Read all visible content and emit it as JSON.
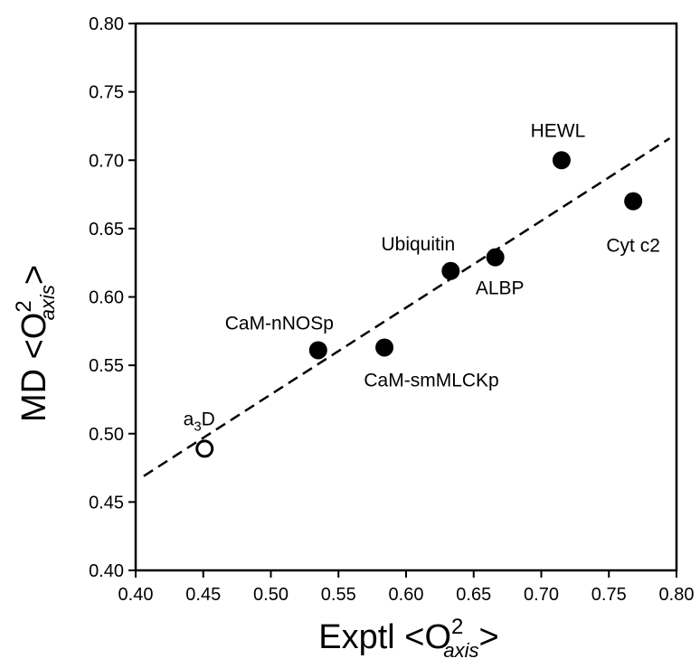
{
  "chart_data": {
    "type": "scatter",
    "xlabel": {
      "main": "Exptl <O",
      "sup": "2",
      "sub": "axis",
      "close": ">"
    },
    "ylabel": {
      "main": "MD <O",
      "sup": "2",
      "sub": "axis",
      "close": ">"
    },
    "xlim": [
      0.4,
      0.8
    ],
    "ylim": [
      0.4,
      0.8
    ],
    "xticks": [
      "0.40",
      "0.45",
      "0.50",
      "0.55",
      "0.60",
      "0.65",
      "0.70",
      "0.75",
      "0.80"
    ],
    "yticks": [
      "0.40",
      "0.45",
      "0.50",
      "0.55",
      "0.60",
      "0.65",
      "0.70",
      "0.75",
      "0.80"
    ],
    "grid": false,
    "points": [
      {
        "label": "HEWL",
        "x": 0.715,
        "y": 0.7,
        "filled": true
      },
      {
        "label": "Cyt c2",
        "x": 0.768,
        "y": 0.67,
        "filled": true
      },
      {
        "label": "Ubiquitin",
        "x": 0.633,
        "y": 0.619,
        "filled": true
      },
      {
        "label": "ALBP",
        "x": 0.666,
        "y": 0.629,
        "filled": true
      },
      {
        "label": "CaM-nNOSp",
        "x": 0.535,
        "y": 0.561,
        "filled": true
      },
      {
        "label": "CaM-smMLCKp",
        "x": 0.584,
        "y": 0.563,
        "filled": true
      },
      {
        "label": "a3D",
        "label_main": "a",
        "label_sub": "3",
        "label_end": "D",
        "x": 0.451,
        "y": 0.489,
        "filled": false
      }
    ],
    "fit_line": {
      "style": "dashed",
      "x": [
        0.406,
        0.795
      ],
      "y": [
        0.469,
        0.716
      ]
    }
  }
}
